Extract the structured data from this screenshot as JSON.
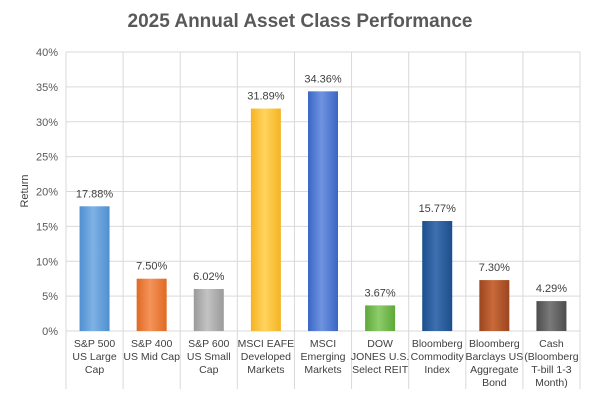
{
  "chart_data": {
    "type": "bar",
    "title": "2025 Annual Asset Class Performance",
    "xlabel": "",
    "ylabel": "Return",
    "ylim": [
      0,
      40
    ],
    "ytick_step": 5,
    "yticks": [
      "0%",
      "5%",
      "10%",
      "15%",
      "20%",
      "25%",
      "30%",
      "35%",
      "40%"
    ],
    "grid": true,
    "categories": [
      [
        "S&P 500",
        "US Large",
        "Cap"
      ],
      [
        "S&P 400",
        "US Mid Cap"
      ],
      [
        "S&P 600",
        "US Small",
        "Cap"
      ],
      [
        "MSCI EAFE",
        "Developed",
        "Markets"
      ],
      [
        "MSCI",
        "Emerging",
        "Markets"
      ],
      [
        "DOW",
        "JONES U.S.",
        "Select REIT"
      ],
      [
        "Bloomberg",
        "Commodity",
        "Index"
      ],
      [
        "Bloomberg",
        "Barclays US",
        "Aggregate",
        "Bond"
      ],
      [
        "Cash",
        "(Bloomberg",
        "T-bill 1-3",
        "Month)"
      ]
    ],
    "values": [
      17.88,
      7.5,
      6.02,
      31.89,
      34.36,
      3.67,
      15.77,
      7.3,
      4.29
    ],
    "data_labels": [
      "17.88%",
      "7.50%",
      "6.02%",
      "31.89%",
      "34.36%",
      "3.67%",
      "15.77%",
      "7.30%",
      "4.29%"
    ],
    "colors": [
      [
        "#7fb2e5",
        "#4f8fd0"
      ],
      [
        "#f4935a",
        "#e06a23"
      ],
      [
        "#c3c3c3",
        "#9a9a9a"
      ],
      [
        "#ffd45c",
        "#f5b323"
      ],
      [
        "#6f93e0",
        "#3a66c4"
      ],
      [
        "#8dcc6a",
        "#5ea83a"
      ],
      [
        "#3d70b0",
        "#1d4e8c"
      ],
      [
        "#c86a3a",
        "#9c4520"
      ],
      [
        "#7a7a7a",
        "#4d4d4d"
      ]
    ]
  }
}
